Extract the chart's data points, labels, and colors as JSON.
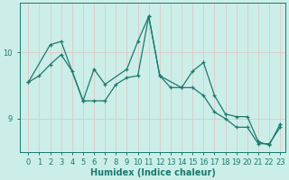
{
  "xlabel": "Humidex (Indice chaleur)",
  "background_color": "#cceee8",
  "grid_color": "#c8e8e0",
  "line_color": "#1a7a6e",
  "line1_x": [
    0,
    1,
    2,
    3,
    4,
    5,
    6,
    7,
    8,
    9,
    10,
    11,
    12,
    13,
    14,
    15,
    16,
    17,
    18,
    19,
    20,
    21,
    22,
    23
  ],
  "line1_y": [
    9.55,
    9.65,
    9.82,
    9.97,
    9.72,
    9.27,
    9.27,
    9.27,
    9.52,
    9.62,
    9.65,
    10.55,
    9.65,
    9.47,
    9.47,
    9.72,
    9.85,
    9.35,
    9.07,
    9.03,
    9.03,
    8.65,
    8.6,
    8.92
  ],
  "line2_x": [
    0,
    2,
    3,
    5,
    6,
    7,
    9,
    10,
    11,
    12,
    14,
    15,
    16,
    17,
    18,
    19,
    20,
    21,
    22,
    23
  ],
  "line2_y": [
    9.55,
    10.12,
    10.17,
    9.27,
    9.75,
    9.52,
    9.75,
    10.17,
    10.55,
    9.65,
    9.47,
    9.47,
    9.35,
    9.1,
    9.0,
    8.87,
    8.87,
    8.62,
    8.62,
    8.87
  ],
  "ylim_min": 8.5,
  "ylim_max": 10.75,
  "yticks": [
    9,
    10
  ],
  "xticks": [
    0,
    1,
    2,
    3,
    4,
    5,
    6,
    7,
    8,
    9,
    10,
    11,
    12,
    13,
    14,
    15,
    16,
    17,
    18,
    19,
    20,
    21,
    22,
    23
  ],
  "tick_fontsize": 6,
  "axis_fontsize": 7
}
